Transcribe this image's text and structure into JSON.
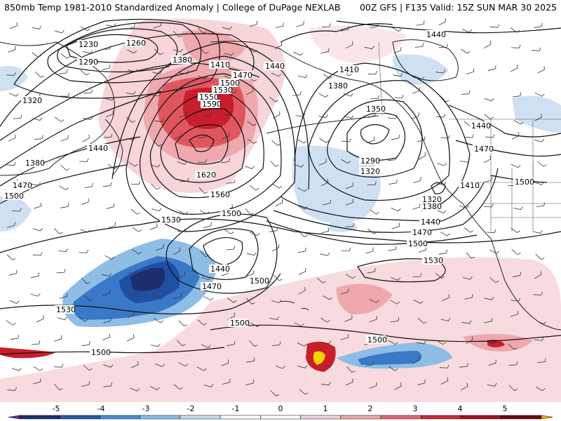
{
  "header": {
    "title_left": "850mb Temp 1981-2010 Standardized Anomaly | College of DuPage NEXLAB",
    "title_right": "00Z GFS | F135 Valid: 15Z SUN MAR 30 2025"
  },
  "contour_labels": [
    {
      "id": "c1230",
      "text": "1230"
    },
    {
      "id": "c1260",
      "text": "1260"
    },
    {
      "id": "c1290a",
      "text": "1290"
    },
    {
      "id": "c1380a",
      "text": "1380"
    },
    {
      "id": "c1410a",
      "text": "1410"
    },
    {
      "id": "c1470a",
      "text": "1470"
    },
    {
      "id": "c1500a",
      "text": "1500"
    },
    {
      "id": "c1530a",
      "text": "1530"
    },
    {
      "id": "c1550",
      "text": "1550"
    },
    {
      "id": "c1590",
      "text": "1590"
    },
    {
      "id": "c1440a",
      "text": "1440"
    },
    {
      "id": "c1320a",
      "text": "1320"
    },
    {
      "id": "c1440b",
      "text": "1440"
    },
    {
      "id": "c1380b",
      "text": "1380"
    },
    {
      "id": "c1470b",
      "text": "1470"
    },
    {
      "id": "c1500b",
      "text": "1500"
    },
    {
      "id": "c1620",
      "text": "1620"
    },
    {
      "id": "c1560",
      "text": "1560"
    },
    {
      "id": "c1500c",
      "text": "1500"
    },
    {
      "id": "c1530b",
      "text": "1530"
    },
    {
      "id": "c1440c",
      "text": "1440"
    },
    {
      "id": "c1470c",
      "text": "1470"
    },
    {
      "id": "c1500d",
      "text": "1500"
    },
    {
      "id": "c1530c",
      "text": "1530"
    },
    {
      "id": "c1500e",
      "text": "1500"
    },
    {
      "id": "c1500f",
      "text": "1500"
    },
    {
      "id": "c1440d",
      "text": "1440"
    },
    {
      "id": "c1410b",
      "text": "1410"
    },
    {
      "id": "c1380c",
      "text": "1380"
    },
    {
      "id": "c1350",
      "text": "1350"
    },
    {
      "id": "c1290b",
      "text": "1290"
    },
    {
      "id": "c1320b",
      "text": "1320"
    },
    {
      "id": "c1320c",
      "text": "1320"
    },
    {
      "id": "c1380d",
      "text": "1380"
    },
    {
      "id": "c1410c",
      "text": "1410"
    },
    {
      "id": "c1440e",
      "text": "1440"
    },
    {
      "id": "c1470d",
      "text": "1470"
    },
    {
      "id": "c1500g",
      "text": "1500"
    },
    {
      "id": "c1440f",
      "text": "1440"
    },
    {
      "id": "c1470e",
      "text": "1470"
    },
    {
      "id": "c1500h",
      "text": "1500"
    },
    {
      "id": "c1530d",
      "text": "1530"
    },
    {
      "id": "c1500i",
      "text": "1500"
    },
    {
      "id": "c1440g",
      "text": "1440"
    }
  ],
  "colorbar": {
    "ticks": [
      "-5",
      "-4",
      "-3",
      "-2",
      "-1",
      "0",
      "1",
      "2",
      "3",
      "4",
      "5"
    ],
    "colors": [
      "#6a2ba3",
      "#1c2e6e",
      "#2a56b0",
      "#4a8fd6",
      "#8fbde8",
      "#c9def2",
      "#ffffff",
      "#ffffff",
      "#f6d3d5",
      "#f0a8ad",
      "#e46a75",
      "#cc2a35",
      "#a3101c",
      "#700010",
      "#f5b800"
    ]
  },
  "colors": {
    "warm_light": "#f7d5d8",
    "warm_mid": "#efa8ae",
    "warm_strong": "#e0565f",
    "warm_deep": "#c81e2b",
    "warm_dark": "#8b0d16",
    "cool_light": "#cfe0f2",
    "cool_mid": "#8ebde6",
    "cool_strong": "#3a78c8",
    "cool_deep": "#1f4fa3",
    "cool_dark": "#1c2e6e",
    "max_yellow": "#f2d500"
  }
}
